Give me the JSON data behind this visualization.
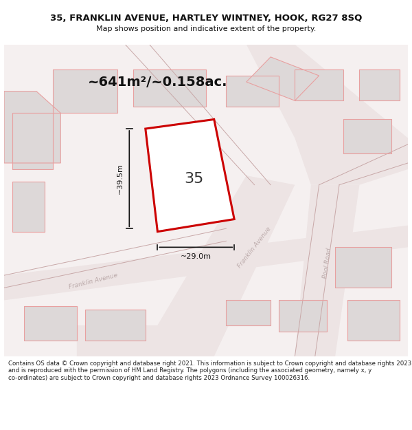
{
  "title": "35, FRANKLIN AVENUE, HARTLEY WINTNEY, HOOK, RG27 8SQ",
  "subtitle": "Map shows position and indicative extent of the property.",
  "area_label": "~641m²/~0.158ac.",
  "property_number": "35",
  "dim_width": "~29.0m",
  "dim_height": "~39.5m",
  "footer": "Contains OS data © Crown copyright and database right 2021. This information is subject to Crown copyright and database rights 2023 and is reproduced with the permission of HM Land Registry. The polygons (including the associated geometry, namely x, y co-ordinates) are subject to Crown copyright and database rights 2023 Ordnance Survey 100026316.",
  "bg_color": "#f5f0f0",
  "map_bg": "#f7f2f2",
  "road_fill": "#e8e0e0",
  "building_fill": "#e0dada",
  "building_stroke": "#c8b8b8",
  "road_stroke": "#d4b8b8",
  "property_stroke": "#cc0000",
  "property_fill": "#ffffff",
  "dim_color": "#111111",
  "street_label_color": "#aaaaaa",
  "title_color": "#111111",
  "footer_color": "#222222"
}
